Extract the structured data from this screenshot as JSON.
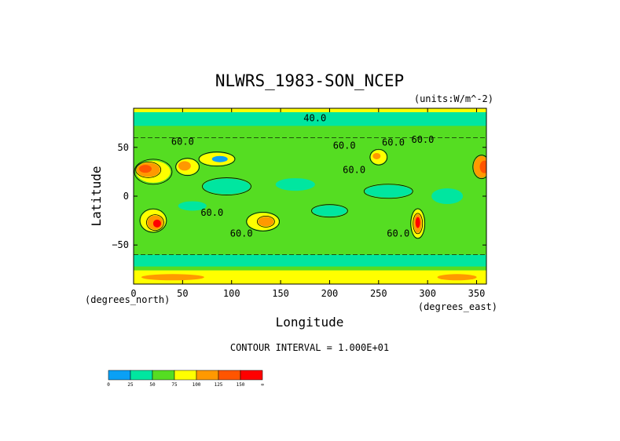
{
  "chart_data": {
    "type": "heatmap",
    "title": "NLWRS_1983-SON_NCEP",
    "units_label": "(units:W/m^-2)",
    "xlabel": "Longitude",
    "ylabel": "Latitude",
    "x_unit_label": "(degrees_east)",
    "y_unit_label": "(degrees_north)",
    "xlim": [
      0,
      360
    ],
    "ylim": [
      -90,
      90
    ],
    "xticks": [
      "0",
      "50",
      "100",
      "150",
      "200",
      "250",
      "300",
      "350"
    ],
    "xtick_values": [
      0,
      50,
      100,
      150,
      200,
      250,
      300,
      350
    ],
    "yticks": [
      "50",
      "0",
      "−50"
    ],
    "ytick_values": [
      50,
      0,
      -50
    ],
    "contour_interval_label": "CONTOUR INTERVAL = 1.000E+01",
    "contour_labels": [
      {
        "text": "40.0",
        "lon": 185,
        "lat": 80
      },
      {
        "text": "60.0",
        "lon": 50,
        "lat": 56
      },
      {
        "text": "60.0",
        "lon": 215,
        "lat": 52
      },
      {
        "text": "60.0",
        "lon": 265,
        "lat": 55
      },
      {
        "text": "60.0",
        "lon": 295,
        "lat": 58
      },
      {
        "text": "60.0",
        "lon": 225,
        "lat": 27
      },
      {
        "text": "60.0",
        "lon": 80,
        "lat": -17
      },
      {
        "text": "60.0",
        "lon": 110,
        "lat": -38
      },
      {
        "text": "60.0",
        "lon": 270,
        "lat": -38
      }
    ],
    "colorbar": {
      "colors": [
        "#0aa0f5",
        "#00e6a0",
        "#55dd22",
        "#ffff00",
        "#ff9900",
        "#ff5500",
        "#ff0000"
      ],
      "tick_labels": [
        "0",
        "25",
        "50",
        "75",
        "100",
        "125",
        "150",
        "∞"
      ]
    }
  }
}
